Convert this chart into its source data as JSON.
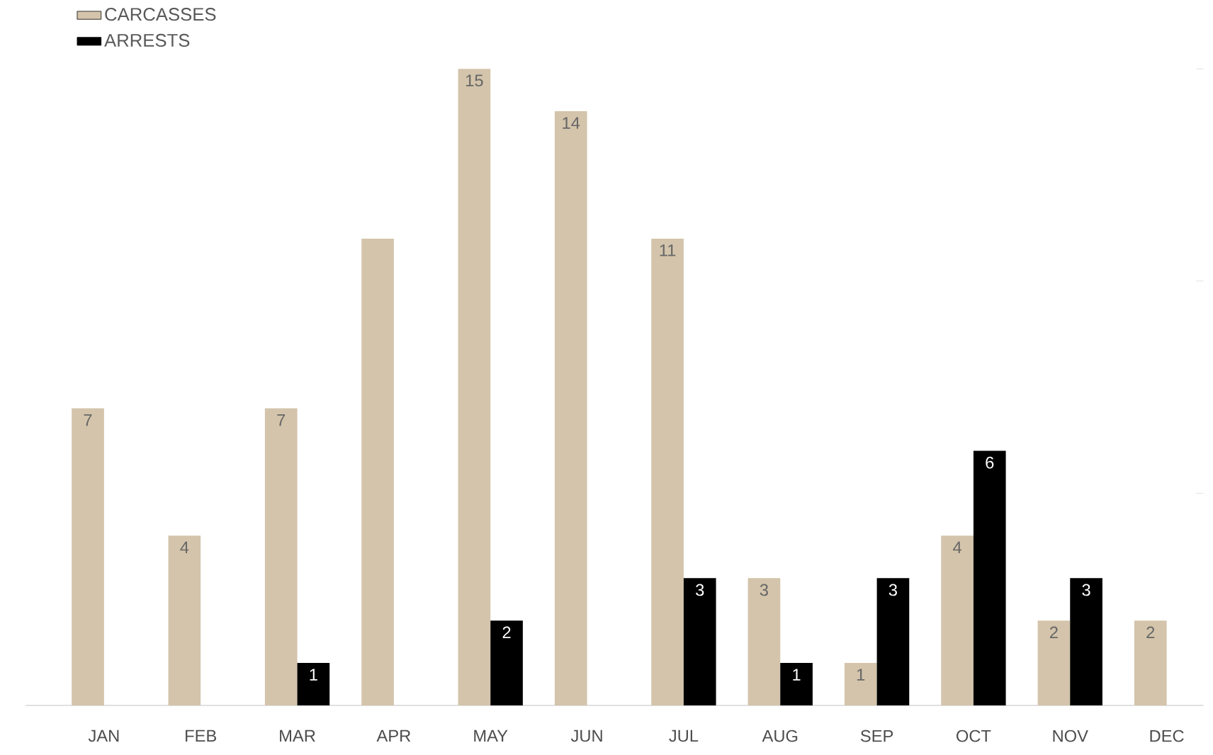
{
  "chart_data": {
    "type": "bar",
    "categories": [
      "JAN",
      "FEB",
      "MAR",
      "APR",
      "MAY",
      "JUN",
      "JUL",
      "AUG",
      "SEP",
      "OCT",
      "NOV",
      "DEC"
    ],
    "series": [
      {
        "name": "CARCASSES",
        "color": "#d3c4ab",
        "values": [
          7,
          4,
          7,
          11,
          15,
          14,
          11,
          3,
          1,
          4,
          2,
          2
        ],
        "value_labels": [
          "7",
          "4",
          "7",
          null,
          "15",
          "14",
          "11",
          "3",
          "1",
          "4",
          "2",
          "2"
        ]
      },
      {
        "name": "ARRESTS",
        "color": "#000000",
        "values": [
          null,
          null,
          1,
          null,
          2,
          null,
          3,
          1,
          3,
          6,
          3,
          null
        ],
        "value_labels": [
          null,
          null,
          "1",
          null,
          "2",
          null,
          "3",
          "1",
          "3",
          "6",
          "3",
          null
        ]
      }
    ],
    "ylim": [
      0,
      15
    ],
    "yticks": [
      {
        "value": 5,
        "label": null
      },
      {
        "value": 10,
        "label": null
      },
      {
        "value": 15,
        "label": null
      }
    ],
    "tick_labels": "x",
    "legend": "top left",
    "grid": false
  }
}
